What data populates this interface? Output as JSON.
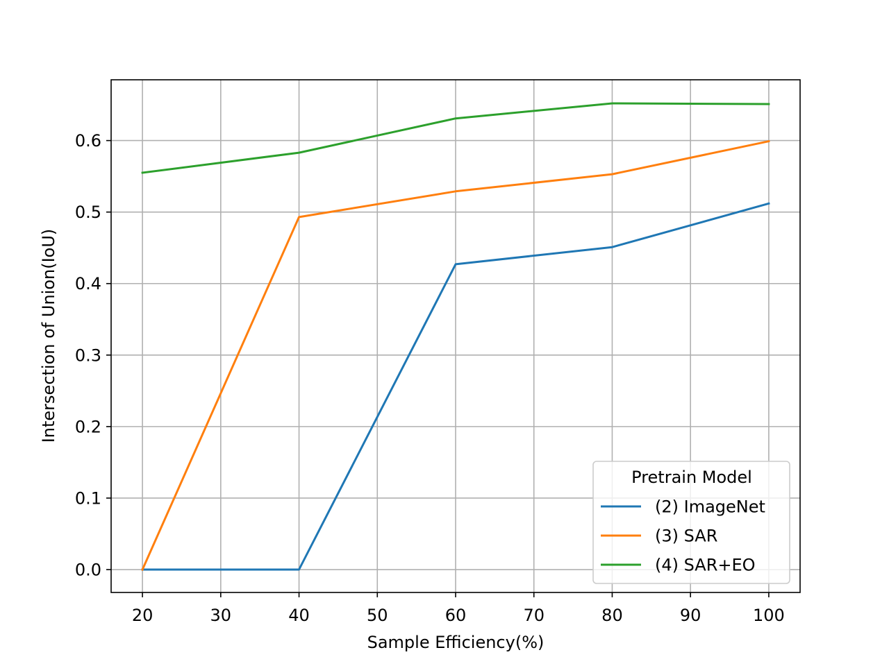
{
  "chart_data": {
    "type": "line",
    "title": "",
    "xlabel": "Sample Efficiency(%)",
    "ylabel": "Intersection of Union(IoU)",
    "x": [
      20,
      40,
      60,
      80,
      100
    ],
    "xlim": [
      16,
      104
    ],
    "ylim": [
      -0.032,
      0.685
    ],
    "xticks": [
      20,
      30,
      40,
      50,
      60,
      70,
      80,
      90,
      100
    ],
    "yticks": [
      0.0,
      0.1,
      0.2,
      0.3,
      0.4,
      0.5,
      0.6
    ],
    "grid": true,
    "legend": {
      "title": "Pretrain Model",
      "position": "lower-right"
    },
    "series": [
      {
        "name": "(2) ImageNet",
        "color": "#1f77b4",
        "values": [
          0.0,
          0.0,
          0.427,
          0.451,
          0.512
        ]
      },
      {
        "name": "(3) SAR",
        "color": "#ff7f0e",
        "values": [
          0.0,
          0.493,
          0.529,
          0.553,
          0.599
        ]
      },
      {
        "name": "(4) SAR+EO",
        "color": "#2ca02c",
        "values": [
          0.555,
          0.583,
          0.631,
          0.652,
          0.651
        ]
      }
    ]
  }
}
